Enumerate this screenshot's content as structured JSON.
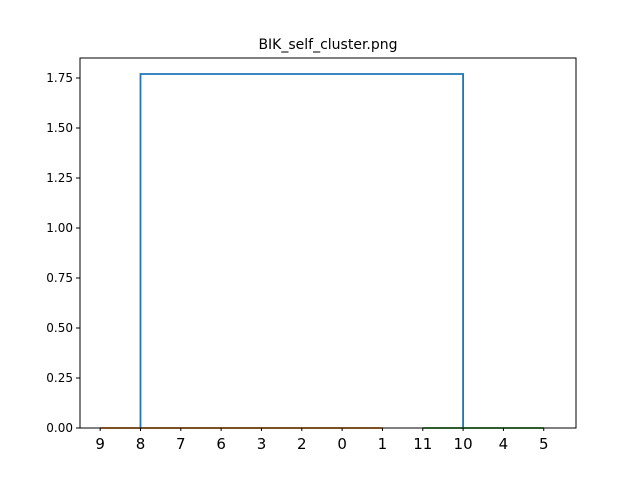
{
  "chart_data": {
    "type": "dendrogram",
    "title": "BIK_self_cluster.png",
    "xlabel": "",
    "ylabel": "",
    "ylim": [
      0,
      1.85
    ],
    "yticks": [
      "0.00",
      "0.25",
      "0.50",
      "0.75",
      "1.00",
      "1.25",
      "1.50",
      "1.75"
    ],
    "leaves": [
      "9",
      "8",
      "7",
      "6",
      "3",
      "2",
      "0",
      "1",
      "11",
      "10",
      "4",
      "5"
    ],
    "colors": {
      "above_threshold": "#1f77b4",
      "cluster_1": "#ff7f0e",
      "cluster_2": "#2ca02c"
    },
    "clusters": [
      {
        "name": "cluster_1",
        "leaf_range": [
          0,
          7
        ],
        "height": 0.0,
        "color": "#ff7f0e"
      },
      {
        "name": "cluster_2",
        "leaf_range": [
          8,
          11
        ],
        "height": 0.0,
        "color": "#2ca02c"
      }
    ],
    "links": [
      {
        "left_leaf": 1,
        "right_leaf": 9,
        "height": 1.77,
        "left_base": 0.0,
        "right_base": 0.0,
        "color": "#1f77b4"
      }
    ],
    "grid": false
  }
}
